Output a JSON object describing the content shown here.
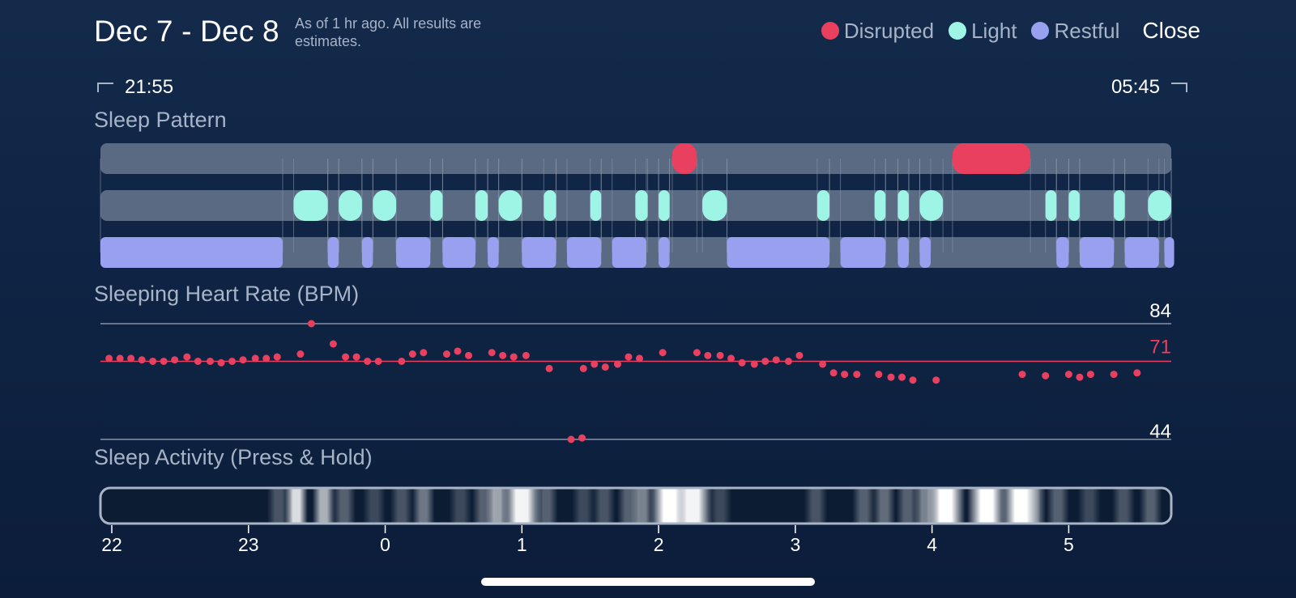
{
  "header": {
    "title": "Dec 7 - Dec 8",
    "subtitle": "As of 1 hr ago. All results are estimates.",
    "close_label": "Close"
  },
  "legend": [
    {
      "label": "Disrupted",
      "color": "#e8405e"
    },
    {
      "label": "Light",
      "color": "#9ef5e6"
    },
    {
      "label": "Restful",
      "color": "#9aa0f0"
    }
  ],
  "time_range": {
    "start": "21:55",
    "end": "05:45"
  },
  "sections": {
    "pattern": "Sleep Pattern",
    "heart_rate": "Sleeping Heart Rate (BPM)",
    "activity": "Sleep Activity (Press & Hold)"
  },
  "chart_data": [
    {
      "type": "timeline",
      "title": "Sleep Pattern",
      "time_unit": "hours since 22:00",
      "xlim": [
        -0.083,
        7.75
      ],
      "series": [
        {
          "name": "Disrupted",
          "color": "#e8405e",
          "intervals": [
            [
              4.1,
              4.28
            ],
            [
              6.15,
              6.72
            ]
          ]
        },
        {
          "name": "Light",
          "color": "#9ef5e6",
          "intervals": [
            [
              1.33,
              1.58
            ],
            [
              1.66,
              1.83
            ],
            [
              1.91,
              2.08
            ],
            [
              2.33,
              2.42
            ],
            [
              2.66,
              2.75
            ],
            [
              2.83,
              3.0
            ],
            [
              3.16,
              3.25
            ],
            [
              3.5,
              3.58
            ],
            [
              3.83,
              3.92
            ],
            [
              4.0,
              4.08
            ],
            [
              4.32,
              4.5
            ],
            [
              5.16,
              5.25
            ],
            [
              5.58,
              5.66
            ],
            [
              5.75,
              5.83
            ],
            [
              5.91,
              6.08
            ],
            [
              6.83,
              6.91
            ],
            [
              7.0,
              7.08
            ],
            [
              7.33,
              7.41
            ],
            [
              7.58,
              7.75
            ]
          ]
        },
        {
          "name": "Restful",
          "color": "#9aa0f0",
          "intervals": [
            [
              -0.083,
              1.25
            ],
            [
              1.58,
              1.66
            ],
            [
              1.83,
              1.91
            ],
            [
              2.08,
              2.33
            ],
            [
              2.42,
              2.66
            ],
            [
              2.75,
              2.83
            ],
            [
              3.0,
              3.25
            ],
            [
              3.33,
              3.58
            ],
            [
              3.66,
              3.91
            ],
            [
              4.0,
              4.08
            ],
            [
              4.5,
              5.25
            ],
            [
              5.33,
              5.66
            ],
            [
              5.75,
              5.83
            ],
            [
              5.91,
              5.99
            ],
            [
              6.91,
              7.0
            ],
            [
              7.08,
              7.33
            ],
            [
              7.41,
              7.66
            ],
            [
              7.7,
              7.75
            ]
          ]
        }
      ]
    },
    {
      "type": "scatter",
      "title": "Sleeping Heart Rate (BPM)",
      "ylim": [
        44,
        84
      ],
      "y_ticks": [
        84,
        44
      ],
      "reference_line": 71,
      "x_unit": "hours since 22:00",
      "points": [
        [
          -0.02,
          72
        ],
        [
          0.06,
          72
        ],
        [
          0.14,
          72
        ],
        [
          0.22,
          71.5
        ],
        [
          0.3,
          71
        ],
        [
          0.38,
          71
        ],
        [
          0.46,
          71.5
        ],
        [
          0.55,
          72.5
        ],
        [
          0.63,
          71
        ],
        [
          0.72,
          71
        ],
        [
          0.8,
          70.5
        ],
        [
          0.88,
          71
        ],
        [
          0.96,
          71.5
        ],
        [
          1.05,
          72
        ],
        [
          1.13,
          72
        ],
        [
          1.21,
          72.5
        ],
        [
          1.38,
          73.5
        ],
        [
          1.46,
          84
        ],
        [
          1.62,
          77
        ],
        [
          1.71,
          72.5
        ],
        [
          1.79,
          72.5
        ],
        [
          1.87,
          71
        ],
        [
          1.95,
          71
        ],
        [
          2.12,
          71
        ],
        [
          2.2,
          73.5
        ],
        [
          2.28,
          74
        ],
        [
          2.45,
          73.5
        ],
        [
          2.53,
          74.5
        ],
        [
          2.61,
          73
        ],
        [
          2.78,
          74
        ],
        [
          2.86,
          73
        ],
        [
          2.94,
          72.5
        ],
        [
          3.03,
          73
        ],
        [
          3.2,
          68.5
        ],
        [
          3.45,
          68.5
        ],
        [
          3.53,
          70
        ],
        [
          3.61,
          69
        ],
        [
          3.7,
          70
        ],
        [
          3.78,
          72.5
        ],
        [
          3.86,
          72
        ],
        [
          4.03,
          74
        ],
        [
          4.28,
          74
        ],
        [
          4.36,
          73
        ],
        [
          4.45,
          73
        ],
        [
          4.53,
          72
        ],
        [
          4.61,
          70.5
        ],
        [
          4.7,
          70
        ],
        [
          4.78,
          71
        ],
        [
          4.86,
          71.5
        ],
        [
          4.95,
          71
        ],
        [
          5.03,
          73
        ],
        [
          5.2,
          70
        ],
        [
          5.28,
          67
        ],
        [
          5.36,
          66.5
        ],
        [
          5.45,
          66.5
        ],
        [
          5.61,
          66.5
        ],
        [
          5.7,
          65.5
        ],
        [
          5.78,
          65.5
        ],
        [
          5.86,
          64.5
        ],
        [
          6.03,
          64.5
        ],
        [
          6.66,
          66.5
        ],
        [
          6.83,
          66
        ],
        [
          7.0,
          66.5
        ],
        [
          7.08,
          65.5
        ],
        [
          7.16,
          66.5
        ],
        [
          7.33,
          66.5
        ],
        [
          7.5,
          67
        ],
        [
          3.36,
          44
        ],
        [
          3.44,
          44.5
        ]
      ]
    },
    {
      "type": "heatmap",
      "title": "Sleep Activity (Press & Hold)",
      "x_ticks": [
        "22",
        "23",
        "0",
        "1",
        "2",
        "3",
        "4",
        "5"
      ],
      "x_unit": "hours since 22:00",
      "intensity": [
        [
          1.22,
          0.25
        ],
        [
          1.35,
          0.85
        ],
        [
          1.55,
          0.65
        ],
        [
          1.7,
          0.3
        ],
        [
          1.92,
          0.2
        ],
        [
          2.12,
          0.25
        ],
        [
          2.28,
          0.4
        ],
        [
          2.55,
          0.2
        ],
        [
          2.72,
          0.3
        ],
        [
          2.82,
          0.6
        ],
        [
          3.0,
          0.95
        ],
        [
          3.18,
          0.3
        ],
        [
          3.45,
          0.2
        ],
        [
          3.6,
          0.25
        ],
        [
          3.78,
          0.3
        ],
        [
          3.88,
          0.45
        ],
        [
          4.08,
          1.0
        ],
        [
          4.25,
          0.95
        ],
        [
          4.45,
          0.2
        ],
        [
          5.15,
          0.25
        ],
        [
          5.5,
          0.3
        ],
        [
          5.65,
          0.35
        ],
        [
          5.82,
          0.3
        ],
        [
          5.95,
          0.45
        ],
        [
          6.1,
          1.0
        ],
        [
          6.4,
          1.0
        ],
        [
          6.65,
          1.0
        ],
        [
          6.75,
          0.4
        ],
        [
          6.92,
          0.3
        ],
        [
          7.15,
          0.2
        ],
        [
          7.4,
          0.25
        ],
        [
          7.6,
          0.3
        ]
      ]
    }
  ]
}
